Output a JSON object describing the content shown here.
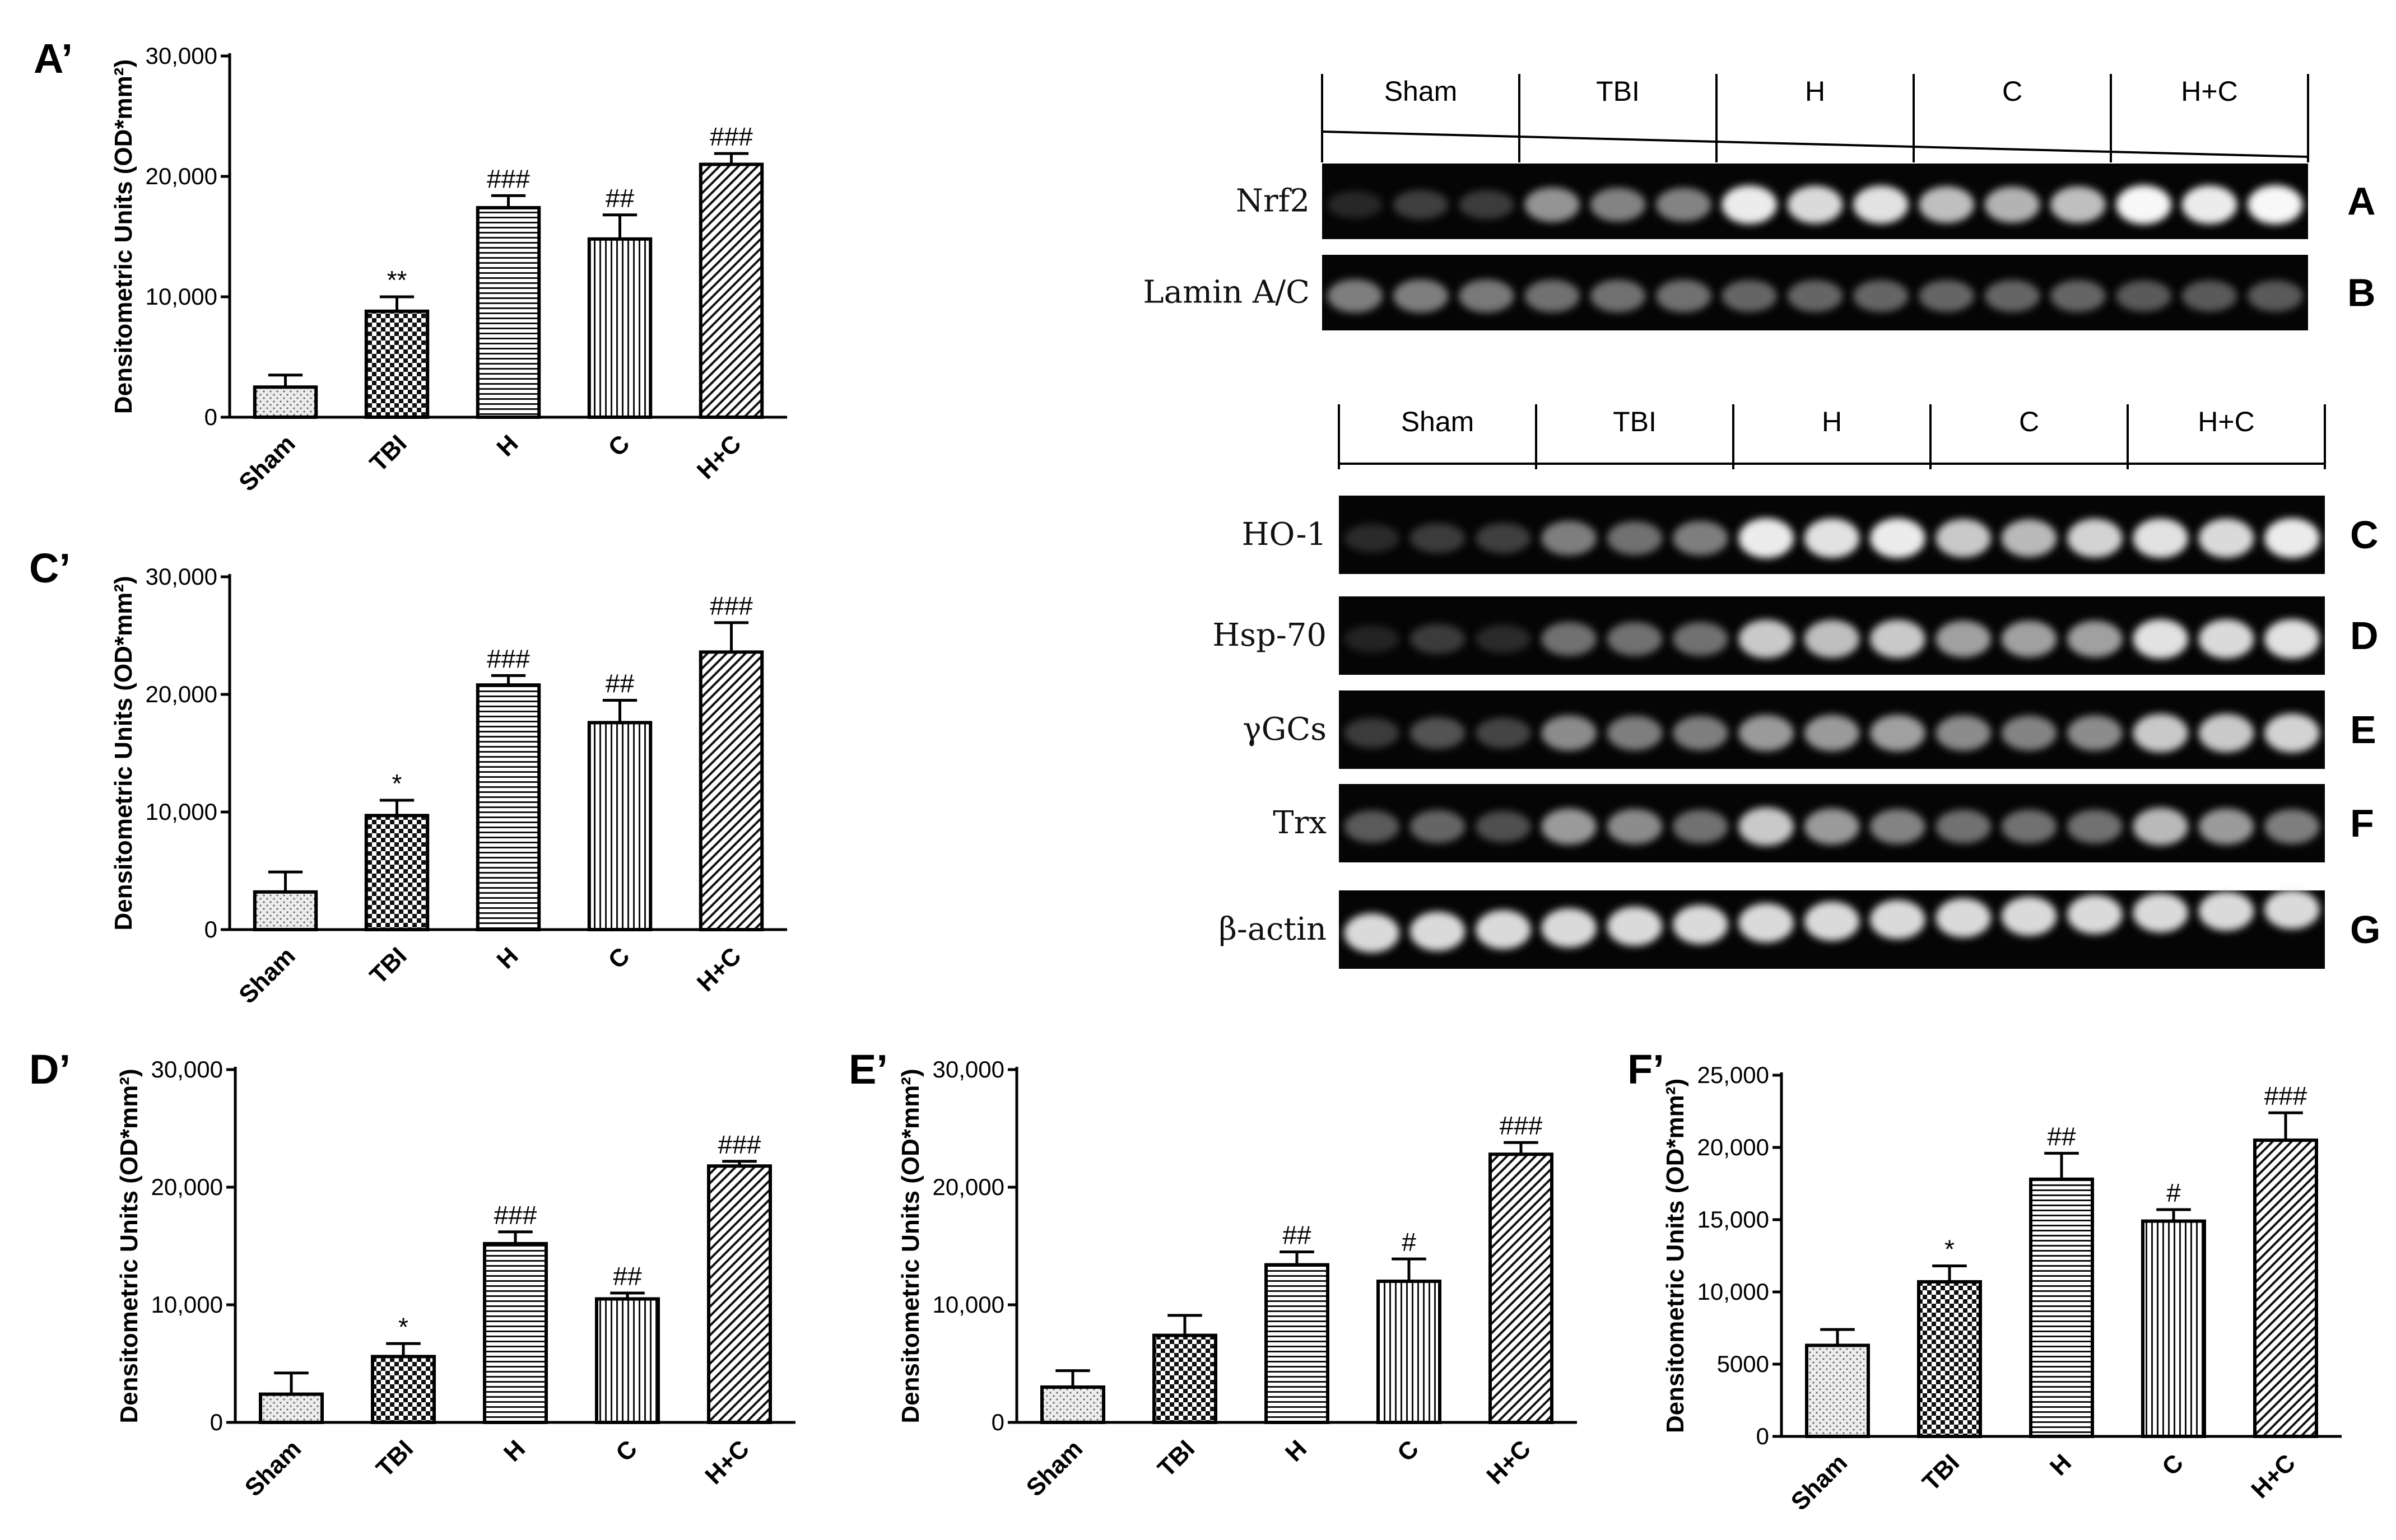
{
  "chart_data": [
    {
      "type": "bar",
      "panel": "A’",
      "categories": [
        "Sham",
        "TBI",
        "H",
        "C",
        "H+C"
      ],
      "values": [
        2500,
        8800,
        17400,
        14800,
        21000
      ],
      "errors": [
        1000,
        1200,
        1000,
        2000,
        900
      ],
      "annotations": [
        "",
        "**",
        "###",
        "##",
        "###"
      ],
      "ylabel": "Densitometric Units (OD*mm²)",
      "ylim": [
        0,
        30000
      ],
      "yticks": [
        "0",
        "10,000",
        "20,000",
        "30,000"
      ],
      "patterns": [
        "dots",
        "checker",
        "hlines",
        "vlines",
        "diag"
      ]
    },
    {
      "type": "bar",
      "panel": "C’",
      "categories": [
        "Sham",
        "TBI",
        "H",
        "C",
        "H+C"
      ],
      "values": [
        3200,
        9700,
        20800,
        17600,
        23600
      ],
      "errors": [
        1700,
        1300,
        800,
        1900,
        2500
      ],
      "annotations": [
        "",
        "*",
        "###",
        "##",
        "###"
      ],
      "ylabel": "Densitometric Units (OD*mm²)",
      "ylim": [
        0,
        30000
      ],
      "yticks": [
        "0",
        "10,000",
        "20,000",
        "30,000"
      ],
      "patterns": [
        "dots",
        "checker",
        "hlines",
        "vlines",
        "diag"
      ]
    },
    {
      "type": "bar",
      "panel": "D’",
      "categories": [
        "Sham",
        "TBI",
        "H",
        "C",
        "H+C"
      ],
      "values": [
        2400,
        5600,
        15200,
        10500,
        21800
      ],
      "errors": [
        1800,
        1100,
        1000,
        500,
        400
      ],
      "annotations": [
        "",
        "*",
        "###",
        "##",
        "###"
      ],
      "ylabel": "Densitometric Units (OD*mm²)",
      "ylim": [
        0,
        30000
      ],
      "yticks": [
        "0",
        "10,000",
        "20,000",
        "30,000"
      ],
      "patterns": [
        "dots",
        "checker",
        "hlines",
        "vlines",
        "diag"
      ]
    },
    {
      "type": "bar",
      "panel": "E’",
      "categories": [
        "Sham",
        "TBI",
        "H",
        "C",
        "H+C"
      ],
      "values": [
        3000,
        7400,
        13400,
        12000,
        22800
      ],
      "errors": [
        1400,
        1700,
        1100,
        1900,
        1000
      ],
      "annotations": [
        "",
        "",
        "##",
        "#",
        "###"
      ],
      "ylabel": "Densitometric Units (OD*mm²)",
      "ylim": [
        0,
        30000
      ],
      "yticks": [
        "0",
        "10,000",
        "20,000",
        "30,000"
      ],
      "patterns": [
        "dots",
        "checker",
        "hlines",
        "vlines",
        "diag"
      ]
    },
    {
      "type": "bar",
      "panel": "F’",
      "categories": [
        "Sham",
        "TBI",
        "H",
        "C",
        "H+C"
      ],
      "values": [
        6300,
        10700,
        17800,
        14900,
        20500
      ],
      "errors": [
        1100,
        1100,
        1800,
        800,
        1900
      ],
      "annotations": [
        "",
        "*",
        "##",
        "#",
        "###"
      ],
      "ylabel": "Densitometric Units (OD*mm²)",
      "ylim": [
        0,
        25000
      ],
      "yticks": [
        "0",
        "5000",
        "10,000",
        "15,000",
        "20,000",
        "25,000"
      ],
      "patterns": [
        "dots",
        "checker",
        "hlines",
        "vlines",
        "diag"
      ]
    }
  ],
  "blots": {
    "top": {
      "groups": [
        "Sham",
        "TBI",
        "H",
        "C",
        "H+C"
      ],
      "rows": [
        {
          "label": "Nrf2",
          "letter": "A",
          "intensities": [
            0.18,
            0.32,
            0.3,
            0.68,
            0.62,
            0.62,
            0.95,
            0.9,
            0.92,
            0.82,
            0.78,
            0.82,
            0.98,
            0.95,
            0.98
          ]
        },
        {
          "label": "Lamin A/C",
          "letter": "B",
          "intensities": [
            0.6,
            0.6,
            0.58,
            0.55,
            0.55,
            0.55,
            0.5,
            0.5,
            0.5,
            0.5,
            0.5,
            0.5,
            0.45,
            0.45,
            0.45
          ]
        }
      ]
    },
    "bottom": {
      "groups": [
        "Sham",
        "TBI",
        "H",
        "C",
        "H+C"
      ],
      "rows": [
        {
          "label": "HO-1",
          "letter": "C",
          "intensities": [
            0.2,
            0.3,
            0.32,
            0.6,
            0.55,
            0.6,
            0.95,
            0.92,
            0.95,
            0.85,
            0.8,
            0.88,
            0.92,
            0.9,
            0.95
          ]
        },
        {
          "label": "Hsp-70",
          "letter": "D",
          "intensities": [
            0.15,
            0.3,
            0.2,
            0.55,
            0.55,
            0.55,
            0.85,
            0.82,
            0.85,
            0.72,
            0.72,
            0.72,
            0.92,
            0.9,
            0.92
          ]
        },
        {
          "label": "γGCs",
          "letter": "E",
          "intensities": [
            0.3,
            0.42,
            0.35,
            0.65,
            0.6,
            0.6,
            0.7,
            0.7,
            0.72,
            0.65,
            0.62,
            0.65,
            0.85,
            0.85,
            0.88
          ]
        },
        {
          "label": "Trx",
          "letter": "F",
          "intensities": [
            0.45,
            0.5,
            0.4,
            0.7,
            0.65,
            0.55,
            0.85,
            0.7,
            0.62,
            0.55,
            0.55,
            0.55,
            0.8,
            0.7,
            0.6
          ]
        },
        {
          "label": "β-actin",
          "letter": "G",
          "intensities": [
            0.9,
            0.9,
            0.9,
            0.9,
            0.9,
            0.9,
            0.9,
            0.9,
            0.9,
            0.9,
            0.9,
            0.9,
            0.9,
            0.9,
            0.9
          ]
        }
      ]
    }
  }
}
